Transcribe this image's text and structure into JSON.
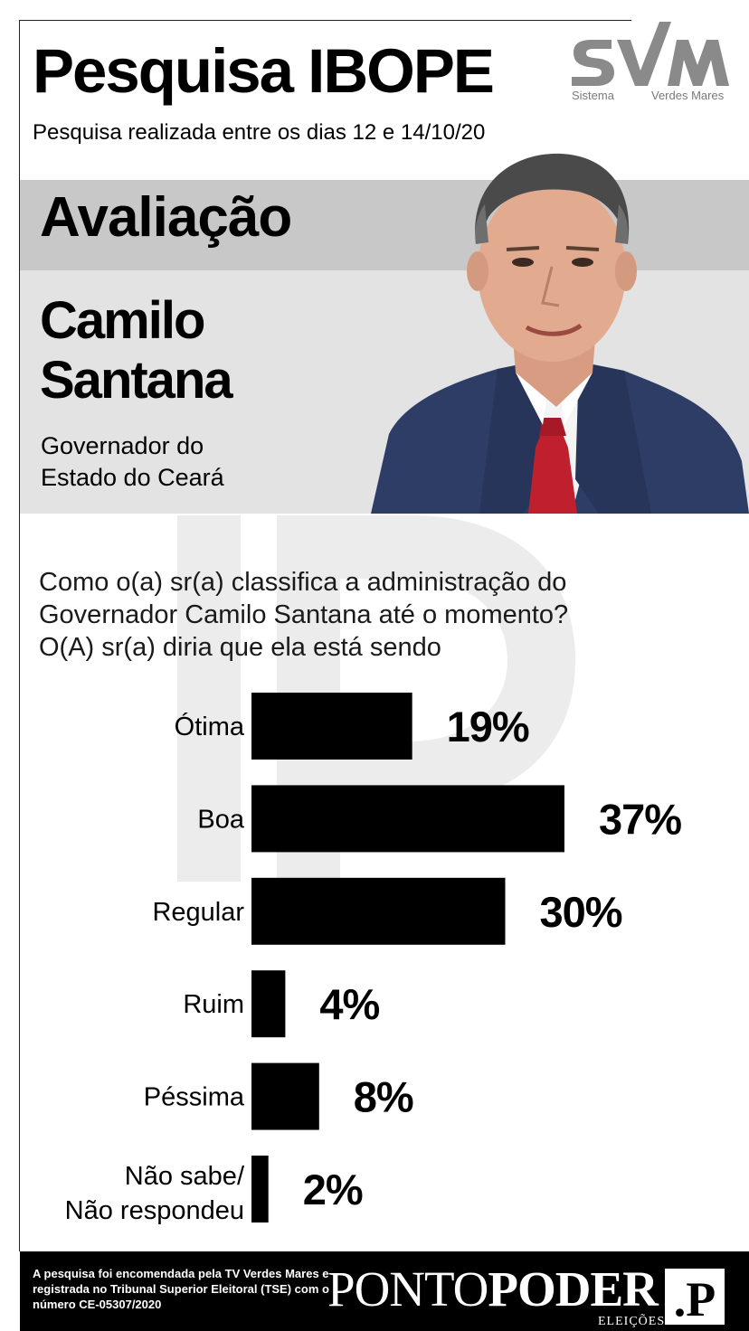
{
  "header": {
    "title": "Pesquisa IBOPE",
    "subtitle": "Pesquisa realizada entre os dias 12 e 14/10/20"
  },
  "logo": {
    "brand": "SVM",
    "line_left": "Sistema",
    "line_right": "Verdes Mares"
  },
  "section": {
    "title": "Avaliação",
    "name_line1": "Camilo",
    "name_line2": "Santana",
    "role_line1": "Governador do",
    "role_line2": "Estado do Ceará"
  },
  "question": {
    "line1": "Como o(a) sr(a) classifica a administração do",
    "line2": "Governador Camilo Santana até o momento?",
    "line3": "O(A) sr(a) diria que ela está sendo"
  },
  "chart_data": {
    "type": "bar",
    "orientation": "horizontal",
    "categories": [
      "Ótima",
      "Boa",
      "Regular",
      "Ruim",
      "Péssima",
      "Não sabe/ Não respondeu"
    ],
    "values": [
      19,
      37,
      30,
      4,
      8,
      2
    ],
    "value_labels": [
      "19%",
      "37%",
      "30%",
      "4%",
      "8%",
      "2%"
    ],
    "unit": "%",
    "bar_color": "#000000",
    "grid": false,
    "legend": "none"
  },
  "footer": {
    "note": "A pesquisa foi encomendada pela TV Verdes Mares e registrada no Tribunal Superior Eleitoral (TSE) com o número CE-05307/2020",
    "brand_light": "PONTO",
    "brand_bold": "PODER",
    "brand_sub": "ELEIÇÕES",
    "brand_mark": ".P"
  },
  "colors": {
    "band_dark": "#c8c8c8",
    "band_light": "#e3e3e3",
    "footer_bg": "#000000",
    "logo_gray": "#8a8a8a"
  }
}
